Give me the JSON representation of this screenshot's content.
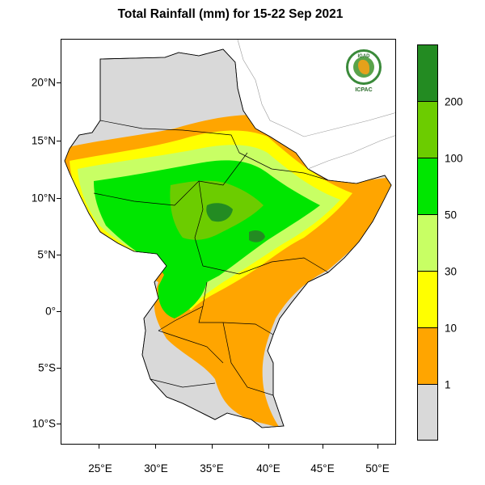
{
  "title": "Total Rainfall (mm) for 15-22 Sep 2021",
  "map": {
    "lon_range": [
      22,
      51.5
    ],
    "lat_range": [
      -12,
      23.5
    ],
    "lat_ticks": [
      "20°N",
      "15°N",
      "10°N",
      "5°N",
      "0°",
      "5°S",
      "10°S"
    ],
    "lon_ticks": [
      "25°E",
      "30°E",
      "35°E",
      "40°E",
      "45°E",
      "50°E"
    ],
    "land_color": "#d9d9d9"
  },
  "legend": {
    "labels": [
      "200",
      "100",
      "50",
      "30",
      "10",
      "1"
    ],
    "colors_bottom_to_top": [
      "#d9d9d9",
      "#ffa500",
      "#ffff00",
      "#c8ff64",
      "#00e600",
      "#6ccc00",
      "#238b22"
    ]
  },
  "logo": {
    "ring_text": "IGAD",
    "caption": "ICPAC"
  }
}
